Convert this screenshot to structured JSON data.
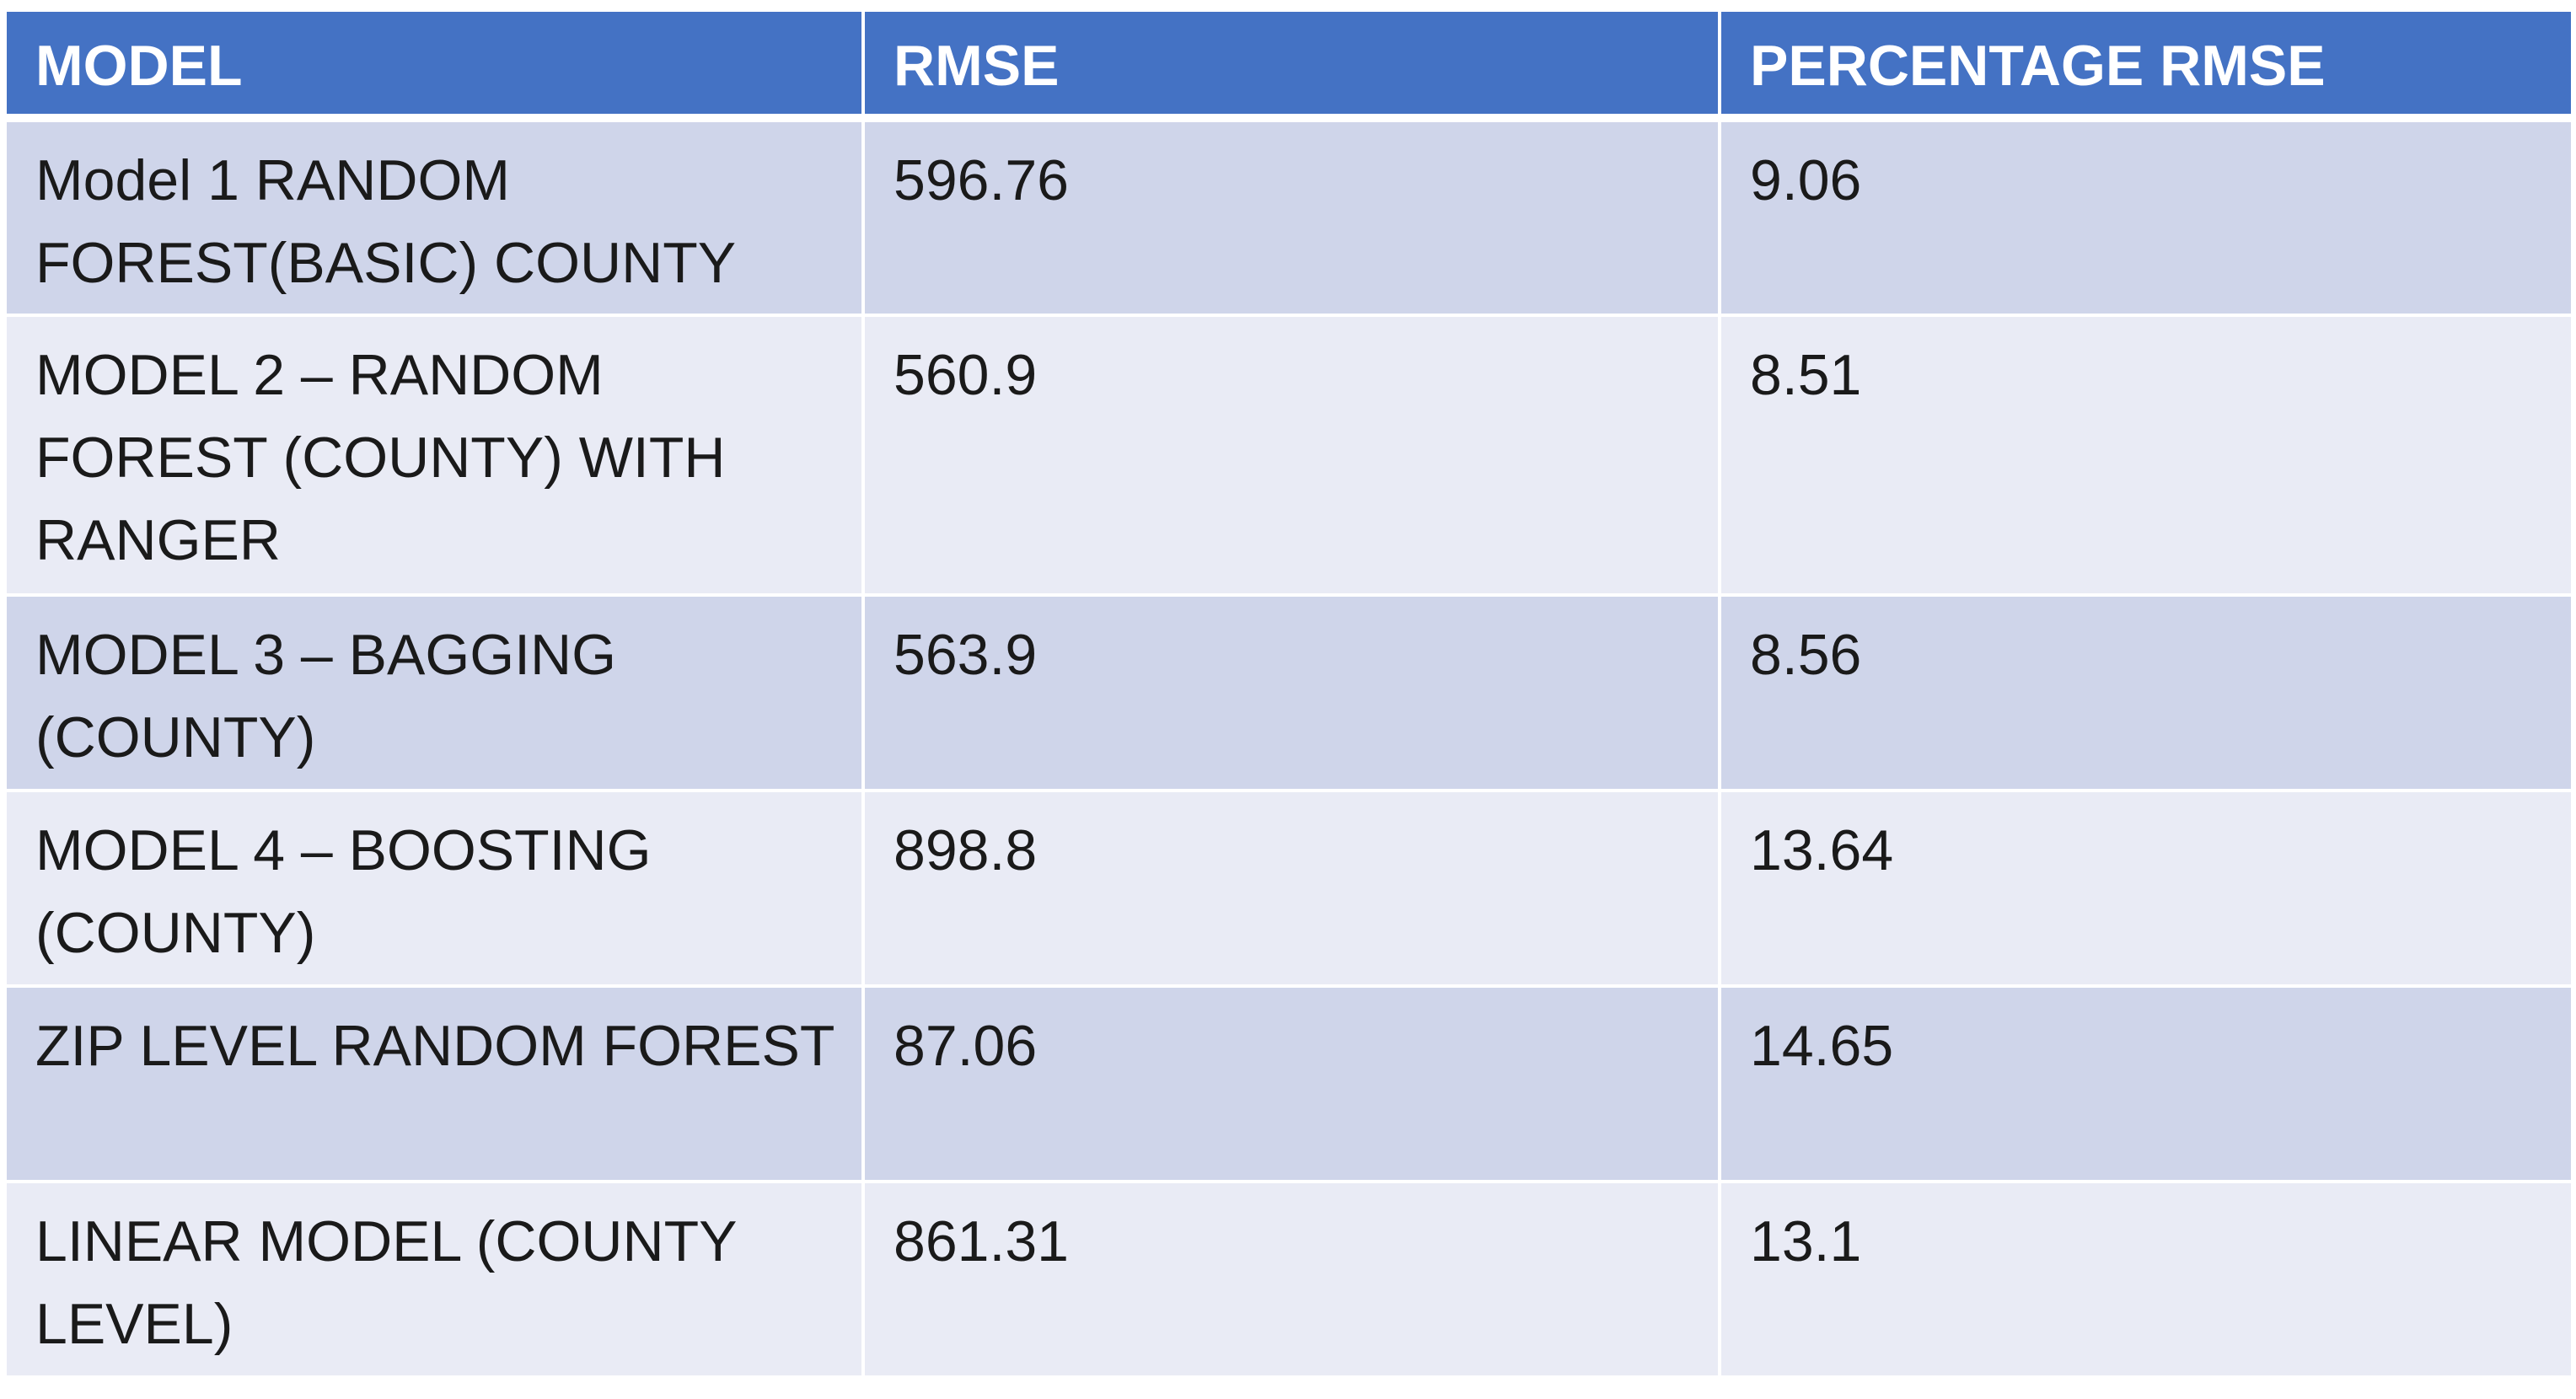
{
  "table": {
    "headers": [
      "MODEL",
      "RMSE",
      "PERCENTAGE RMSE"
    ],
    "rows": [
      {
        "model": "Model 1 RANDOM FOREST(BASIC) COUNTY",
        "rmse": "596.76",
        "pct_rmse": "9.06"
      },
      {
        "model": "MODEL 2 – RANDOM FOREST (COUNTY) WITH RANGER",
        "rmse": "560.9",
        "pct_rmse": "8.51"
      },
      {
        "model": "MODEL 3 – BAGGING (COUNTY)",
        "rmse": "563.9",
        "pct_rmse": "8.56"
      },
      {
        "model": "MODEL 4 – BOOSTING (COUNTY)",
        "rmse": "898.8",
        "pct_rmse": "13.64"
      },
      {
        "model": "ZIP LEVEL RANDOM FOREST",
        "rmse": "87.06",
        "pct_rmse": "14.65"
      },
      {
        "model": "LINEAR MODEL (COUNTY LEVEL)",
        "rmse": "861.31",
        "pct_rmse": "13.1"
      }
    ]
  },
  "colors": {
    "header_bg": "#4472c4",
    "header_text": "#ffffff",
    "row_odd_bg": "#cfd5ea",
    "row_even_bg": "#e9ebf5",
    "cell_text": "#1a1a1a"
  }
}
